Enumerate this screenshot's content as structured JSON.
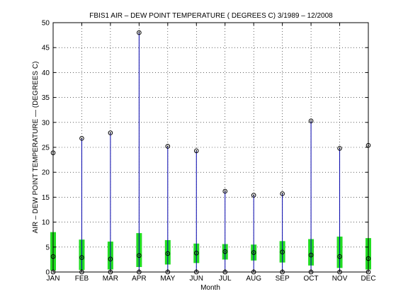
{
  "chart_data": {
    "type": "box",
    "title": "FBIS1  AIR – DEW POINT TEMPERATURE ( DEGREES C) 3/1989 – 12/2008",
    "xlabel": "Month",
    "ylabel": "AIR – DEW POINT TEMPERATURE  —  (DEGREES C)",
    "ylim": [
      0,
      50
    ],
    "yticks": [
      "0",
      "5",
      "10",
      "15",
      "20",
      "25",
      "30",
      "35",
      "40",
      "45",
      "50"
    ],
    "grid": true,
    "categories": [
      "JAN",
      "FEB",
      "MAR",
      "APR",
      "MAY",
      "JUN",
      "JUL",
      "AUG",
      "SEP",
      "OCT",
      "NOV",
      "DEC"
    ],
    "min": [
      0,
      0,
      0,
      0,
      0,
      0,
      0,
      0,
      0,
      0,
      0,
      0
    ],
    "q1": [
      0.3,
      0.4,
      0.5,
      1.0,
      1.5,
      1.8,
      2.5,
      2.3,
      1.9,
      1.3,
      0.8,
      0.5
    ],
    "median": [
      3.1,
      2.9,
      2.6,
      3.3,
      3.7,
      3.8,
      4.1,
      3.9,
      4.0,
      3.4,
      3.1,
      2.7
    ],
    "q3": [
      8.0,
      6.5,
      6.1,
      7.8,
      6.4,
      5.7,
      5.6,
      5.5,
      6.2,
      6.6,
      7.1,
      6.8
    ],
    "max": [
      23.9,
      26.8,
      27.9,
      48.0,
      25.2,
      24.3,
      16.2,
      15.4,
      15.7,
      30.3,
      24.8,
      25.4
    ],
    "colors": {
      "whisker": "#0000aa",
      "box": "#22dd22",
      "marker": "#000000",
      "grid": "#000000"
    }
  }
}
